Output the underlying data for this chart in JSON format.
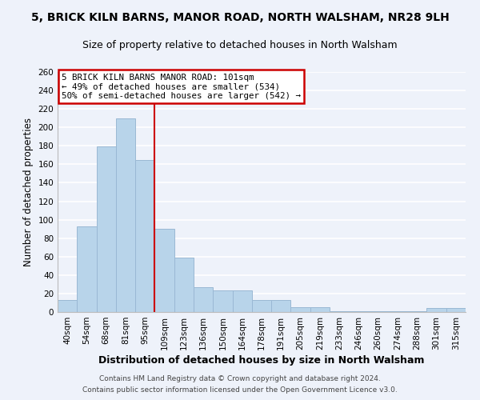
{
  "title": "5, BRICK KILN BARNS, MANOR ROAD, NORTH WALSHAM, NR28 9LH",
  "subtitle": "Size of property relative to detached houses in North Walsham",
  "xlabel": "Distribution of detached houses by size in North Walsham",
  "ylabel": "Number of detached properties",
  "bar_color": "#b8d4ea",
  "bar_edge_color": "#9ab8d4",
  "categories": [
    "40sqm",
    "54sqm",
    "68sqm",
    "81sqm",
    "95sqm",
    "109sqm",
    "123sqm",
    "136sqm",
    "150sqm",
    "164sqm",
    "178sqm",
    "191sqm",
    "205sqm",
    "219sqm",
    "233sqm",
    "246sqm",
    "260sqm",
    "274sqm",
    "288sqm",
    "301sqm",
    "315sqm"
  ],
  "values": [
    13,
    93,
    179,
    210,
    165,
    90,
    59,
    27,
    23,
    23,
    13,
    13,
    5,
    5,
    1,
    1,
    1,
    1,
    1,
    4,
    4
  ],
  "ylim": [
    0,
    260
  ],
  "yticks": [
    0,
    20,
    40,
    60,
    80,
    100,
    120,
    140,
    160,
    180,
    200,
    220,
    240,
    260
  ],
  "vline_x": 4.5,
  "vline_color": "#cc0000",
  "annotation_title": "5 BRICK KILN BARNS MANOR ROAD: 101sqm",
  "annotation_line1": "← 49% of detached houses are smaller (534)",
  "annotation_line2": "50% of semi-detached houses are larger (542) →",
  "annotation_box_facecolor": "#ffffff",
  "annotation_box_edgecolor": "#cc0000",
  "footnote1": "Contains HM Land Registry data © Crown copyright and database right 2024.",
  "footnote2": "Contains public sector information licensed under the Open Government Licence v3.0.",
  "background_color": "#eef2fa",
  "plot_bg_color": "#eef2fa",
  "grid_color": "#ffffff",
  "title_fontsize": 10,
  "subtitle_fontsize": 9,
  "xlabel_fontsize": 9,
  "ylabel_fontsize": 8.5,
  "tick_fontsize": 7.5,
  "footnote_fontsize": 6.5
}
